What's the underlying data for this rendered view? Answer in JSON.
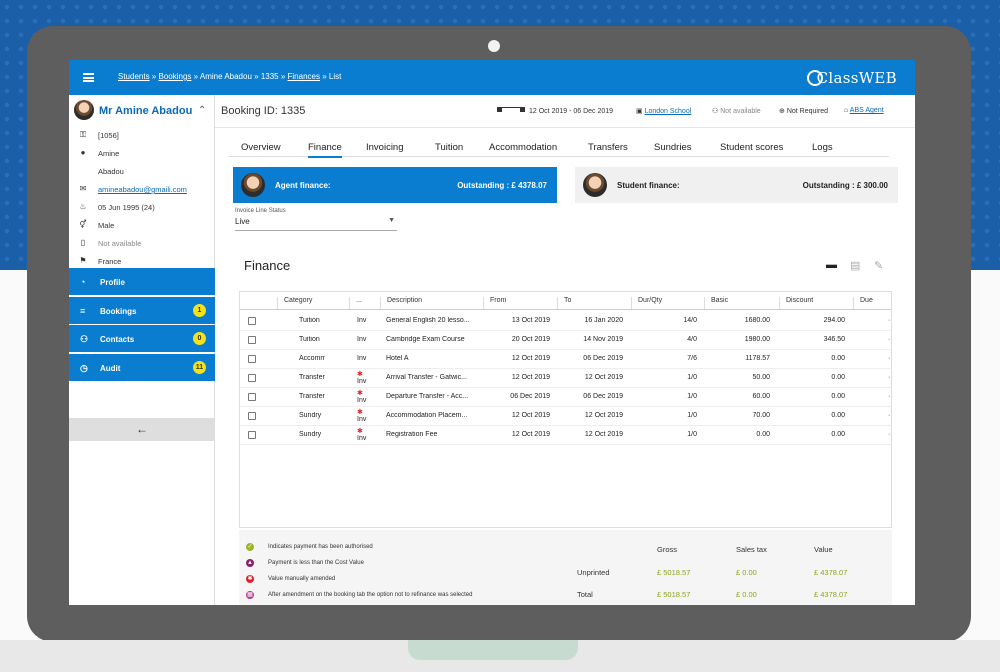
{
  "topbar": {
    "crumbs": [
      {
        "label": "Students",
        "link": true
      },
      {
        "sep": "»"
      },
      {
        "label": "Bookings",
        "link": true
      },
      {
        "sep": "»"
      },
      {
        "label": "Amine Abadou",
        "link": false
      },
      {
        "sep": "»"
      },
      {
        "label": "1335",
        "link": false
      },
      {
        "sep": "»"
      },
      {
        "label": "Finances",
        "link": true
      },
      {
        "sep": "»"
      },
      {
        "label": "List",
        "link": false
      }
    ],
    "logo_c": "C",
    "logo_text": "lassWEB"
  },
  "sidebar": {
    "name": "Mr Amine Abadou",
    "chevron": "⌃",
    "info": [
      {
        "icon": "key-icon",
        "glyph": "⚿",
        "text": "[1056]",
        "style": ""
      },
      {
        "icon": "user-icon",
        "glyph": "●",
        "text": "Amine",
        "style": ""
      },
      {
        "icon": "",
        "glyph": "",
        "text": "Abadou",
        "style": ""
      },
      {
        "icon": "mail-icon",
        "glyph": "✉",
        "text": "amineabadou@gmaili.com",
        "style": "link"
      },
      {
        "icon": "cake-icon",
        "glyph": "♨",
        "text": "05 Jun 1995 (24)",
        "style": ""
      },
      {
        "icon": "gender-icon",
        "glyph": "⚥",
        "text": "Male",
        "style": ""
      },
      {
        "icon": "phone-icon",
        "glyph": "▯",
        "text": "Not available",
        "style": "muted"
      },
      {
        "icon": "flag-icon",
        "glyph": "⚑",
        "text": "France",
        "style": ""
      }
    ],
    "nav": [
      {
        "label": "Profile",
        "glyph": "◔",
        "badge": ""
      },
      {
        "label": "Bookings",
        "glyph": "≡",
        "badge": "1"
      },
      {
        "label": "Contacts",
        "glyph": "⚇",
        "badge": "0"
      },
      {
        "label": "Audit",
        "glyph": "◷",
        "badge": "11"
      }
    ],
    "collapse_glyph": "←"
  },
  "booking": {
    "id_label": "Booking ID: 1335",
    "dates": "12 Oct 2019 - 06 Dec 2019",
    "school": "London School",
    "availability": "Not available",
    "required": "Not Required",
    "agent": "ABS Agent"
  },
  "tabs": [
    "Overview",
    "Finance",
    "Invoicing",
    "Tuition",
    "Accommodation",
    "Transfers",
    "Sundries",
    "Student scores",
    "Logs"
  ],
  "active_tab": "Finance",
  "agent_finance": {
    "label": "Agent finance:",
    "outstanding": "Outstanding : £ 4378.07"
  },
  "student_finance": {
    "label": "Student finance:",
    "outstanding": "Outstanding : £ 300.00"
  },
  "invoice_status": {
    "label": "Invoice Line Status",
    "value": "Live"
  },
  "finance_title": "Finance",
  "grid": {
    "headers": [
      "Category",
      "...",
      "Description",
      "From",
      "To",
      "Dur/Qty",
      "Basic",
      "Discount",
      "Due"
    ],
    "rows": [
      {
        "category": "Tuition",
        "type": "Inv",
        "flag": false,
        "description": "General English 20 lesso...",
        "from": "13 Oct 2019",
        "to": "16 Jan 2020",
        "dur": "14/0",
        "basic": "1680.00",
        "discount": "294.00"
      },
      {
        "category": "Tuition",
        "type": "Inv",
        "flag": false,
        "description": "Cambridge Exam Course",
        "from": "20 Oct 2019",
        "to": "14 Nov 2019",
        "dur": "4/0",
        "basic": "1980.00",
        "discount": "346.50"
      },
      {
        "category": "Accommo...",
        "type": "Inv",
        "flag": false,
        "description": "Hotel A",
        "from": "12 Oct 2019",
        "to": "06 Dec 2019",
        "dur": "7/6",
        "basic": "1178.57",
        "discount": "0.00"
      },
      {
        "category": "Transfer",
        "type": "Inv",
        "flag": true,
        "description": "Arrival Transfer - Gatwic...",
        "from": "12 Oct 2019",
        "to": "12 Oct 2019",
        "dur": "1/0",
        "basic": "50.00",
        "discount": "0.00"
      },
      {
        "category": "Transfer",
        "type": "Inv",
        "flag": true,
        "description": "Departure Transfer - Acc...",
        "from": "06 Dec 2019",
        "to": "06 Dec 2019",
        "dur": "1/0",
        "basic": "60.00",
        "discount": "0.00"
      },
      {
        "category": "Sundry",
        "type": "Inv",
        "flag": true,
        "description": "Accommodation Placem...",
        "from": "12 Oct 2019",
        "to": "12 Oct 2019",
        "dur": "1/0",
        "basic": "70.00",
        "discount": "0.00"
      },
      {
        "category": "Sundry",
        "type": "Inv",
        "flag": true,
        "description": "Registration Fee",
        "from": "12 Oct 2019",
        "to": "12 Oct 2019",
        "dur": "1/0",
        "basic": "0.00",
        "discount": "0.00"
      }
    ]
  },
  "legend": [
    {
      "text": "Indicates payment has been authorised",
      "color": "#9bb52a",
      "glyph": "✓"
    },
    {
      "text": "Payment is less than the Cost Value",
      "color": "#8a1f6b",
      "glyph": "▲"
    },
    {
      "text": "Value manually amended",
      "color": "#e0202a",
      "glyph": "✱"
    },
    {
      "text": "After amendment on the booking tab the option not to refinance was selected",
      "color": "#b33a8c",
      "glyph": "▦"
    }
  ],
  "summary": {
    "headers": [
      "Gross",
      "Sales tax",
      "Value"
    ],
    "rows": [
      {
        "label": "Unprinted",
        "gross": "£ 5018.57",
        "tax": "£ 0.00",
        "value": "£ 4378.07"
      },
      {
        "label": "Total",
        "gross": "£ 5018.57",
        "tax": "£ 0.00",
        "value": "£ 4378.07"
      }
    ]
  },
  "colors": {
    "brand": "#0a7dd0",
    "positive": "#8aa51c",
    "badge": "#f3e21a"
  }
}
